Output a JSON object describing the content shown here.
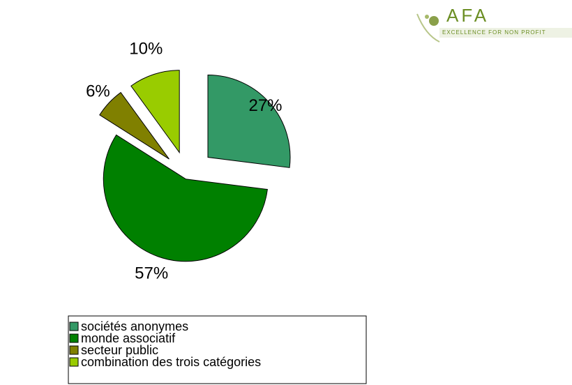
{
  "chart_data": {
    "type": "pie",
    "categories": [
      "sociétés anonymes",
      "monde associatif",
      "secteur public",
      "combination des trois catégories"
    ],
    "values": [
      27,
      57,
      6,
      10
    ],
    "value_labels": [
      "27%",
      "57%",
      "6%",
      "10%"
    ],
    "colors": [
      "#339966",
      "#008000",
      "#808000",
      "#99cc00"
    ],
    "legend": "bottom"
  },
  "logo": {
    "name": "AFA",
    "tagline": "EXCELLENCE FOR NON PROFIT"
  }
}
